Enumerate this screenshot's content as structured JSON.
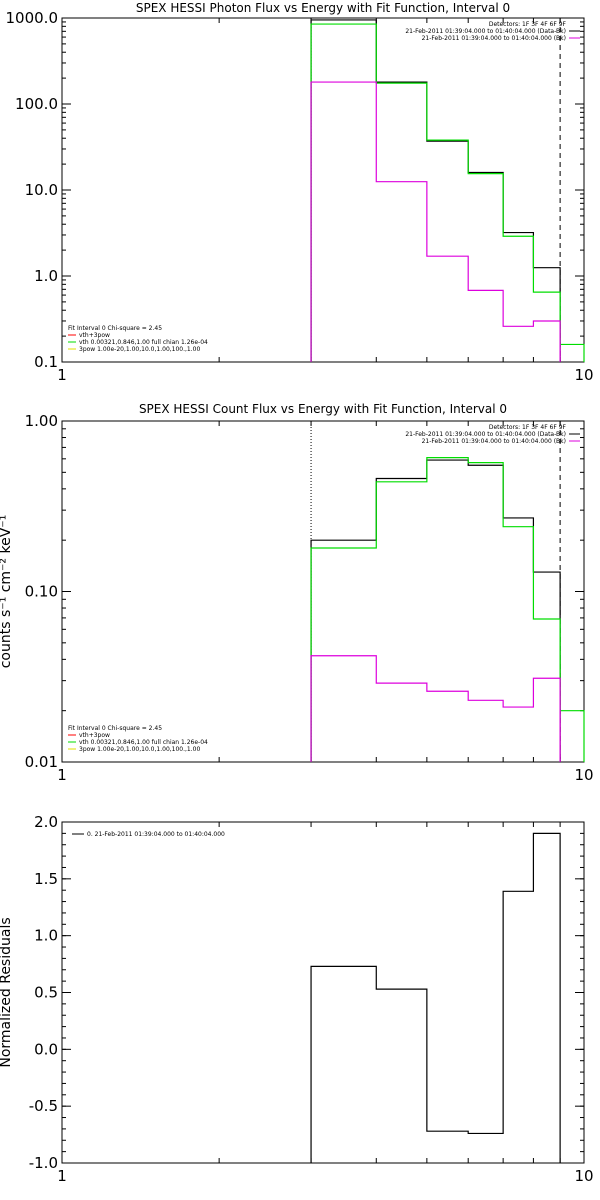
{
  "chart_data": [
    {
      "id": "photon",
      "type": "line",
      "subtype": "step-histogram",
      "title": "SPEX HESSI Photon Flux vs Energy with Fit Function, Interval 0",
      "xlabel": "",
      "ylabel": "",
      "xscale": "log",
      "yscale": "log",
      "xlim": [
        1,
        10
      ],
      "ylim": [
        0.1,
        1000
      ],
      "xticks": [
        {
          "v": 1,
          "label": "1"
        },
        {
          "v": 10,
          "label": "10"
        }
      ],
      "yticks": [
        {
          "v": 0.1,
          "label": "0.1"
        },
        {
          "v": 1,
          "label": "1.0"
        },
        {
          "v": 10,
          "label": "10.0"
        },
        {
          "v": 100,
          "label": "100.0"
        },
        {
          "v": 1000,
          "label": "1000.0"
        }
      ],
      "edges": [
        3,
        4,
        5,
        6,
        7,
        8,
        9,
        10
      ],
      "series": [
        {
          "name": "",
          "color": "#000000",
          "values": [
            950,
            180,
            37,
            16,
            3.2,
            1.25,
            null
          ]
        },
        {
          "name": "vth",
          "color": "#00dd00",
          "values": [
            850,
            175,
            38,
            15.5,
            2.9,
            0.65,
            0.16
          ]
        },
        {
          "name": "",
          "color": "#dd00dd",
          "values": [
            180,
            12.5,
            1.7,
            0.68,
            0.26,
            0.3,
            null
          ]
        }
      ],
      "vlines": [
        {
          "x": 3,
          "style": "dotted"
        },
        {
          "x": 9,
          "style": "dashed"
        }
      ],
      "annotation_lines": [
        "Detectors: 1F 3F 4F 6F 9F",
        "21-Feb-2011 01:39:04.000 to 01:40:04.000 (Data-Bk)",
        "21-Feb-2011 01:39:04.000 to 01:40:04.000 (Bk)"
      ],
      "legend": {
        "placement": "bottom-left",
        "header": "Fit Interval 0   Chi-square = 2.45",
        "entries": [
          {
            "label": "vth+3pow",
            "color": "#ff0000"
          },
          {
            "label": "vth 0.00321,0.846,1.00  full chian 1.26e-04",
            "color": "#00dd00"
          },
          {
            "label": "3pow 1.00e-20,1.00,10.0,1.00,100.,1.00",
            "color": "#e0e000"
          }
        ]
      }
    },
    {
      "id": "count",
      "type": "line",
      "subtype": "step-histogram",
      "title": "SPEX HESSI Count Flux vs Energy with Fit Function, Interval 0",
      "xlabel": "",
      "ylabel": "counts s⁻¹ cm⁻² keV⁻¹",
      "xscale": "log",
      "yscale": "log",
      "xlim": [
        1,
        10
      ],
      "ylim": [
        0.01,
        1
      ],
      "xticks": [
        {
          "v": 1,
          "label": "1"
        },
        {
          "v": 10,
          "label": "10"
        }
      ],
      "yticks": [
        {
          "v": 0.01,
          "label": "0.01"
        },
        {
          "v": 0.1,
          "label": "0.10"
        },
        {
          "v": 1,
          "label": "1.00"
        }
      ],
      "edges": [
        3,
        4,
        5,
        6,
        7,
        8,
        9,
        10
      ],
      "series": [
        {
          "name": "",
          "color": "#000000",
          "values": [
            0.2,
            0.46,
            0.59,
            0.55,
            0.27,
            0.13,
            null
          ]
        },
        {
          "name": "vth",
          "color": "#00dd00",
          "values": [
            0.18,
            0.44,
            0.61,
            0.57,
            0.24,
            0.069,
            0.02
          ]
        },
        {
          "name": "",
          "color": "#dd00dd",
          "values": [
            0.042,
            0.029,
            0.026,
            0.023,
            0.021,
            0.031,
            null
          ]
        }
      ],
      "vlines": [
        {
          "x": 3,
          "style": "dotted"
        },
        {
          "x": 9,
          "style": "dashed"
        }
      ],
      "annotation_lines": [
        "Detectors: 1F 3F 4F 6F 9F",
        "21-Feb-2011 01:39:04.000 to 01:40:04.000 (Data-Bk)",
        "21-Feb-2011 01:39:04.000 to 01:40:04.000 (Bk)"
      ],
      "legend": {
        "placement": "bottom-left",
        "header": "Fit Interval 0   Chi-square = 2.45",
        "entries": [
          {
            "label": "vth+3pow",
            "color": "#ff0000"
          },
          {
            "label": "vth 0.00321,0.846,1.00  full chian 1.26e-04",
            "color": "#00dd00"
          },
          {
            "label": "3pow 1.00e-20,1.00,10.0,1.00,100.,1.00",
            "color": "#e0e000"
          }
        ]
      }
    },
    {
      "id": "resid",
      "type": "line",
      "subtype": "step-histogram",
      "title": "",
      "xlabel": "",
      "ylabel": "Normalized Residuals",
      "xscale": "log",
      "yscale": "linear",
      "xlim": [
        1,
        10
      ],
      "ylim": [
        -1,
        2
      ],
      "xticks": [
        {
          "v": 1,
          "label": "1"
        },
        {
          "v": 10,
          "label": "10"
        }
      ],
      "yticks": [
        {
          "v": -1,
          "label": "-1.0"
        },
        {
          "v": -0.5,
          "label": "-0.5"
        },
        {
          "v": 0,
          "label": "0.0"
        },
        {
          "v": 0.5,
          "label": "0.5"
        },
        {
          "v": 1,
          "label": "1.0"
        },
        {
          "v": 1.5,
          "label": "1.5"
        },
        {
          "v": 2,
          "label": "2.0"
        }
      ],
      "edges": [
        3,
        4,
        5,
        6,
        7,
        8,
        9
      ],
      "series": [
        {
          "name": "0. 21-Feb-2011 01:39:04.000 to 01:40:04.000",
          "color": "#000000",
          "values": [
            0.73,
            0.53,
            -0.72,
            -0.74,
            1.39,
            1.9
          ]
        }
      ],
      "legend": {
        "placement": "top-left",
        "entries": [
          {
            "label": "0. 21-Feb-2011 01:39:04.000 to 01:40:04.000",
            "color": "#000000"
          }
        ]
      }
    }
  ]
}
